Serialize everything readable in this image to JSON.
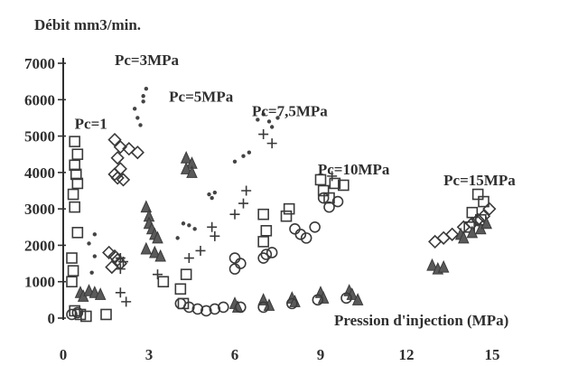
{
  "chart_data": {
    "type": "scatter",
    "title": "",
    "ylabel": "Débit mm3/min.",
    "xlabel": "Pression d'injection (MPa)",
    "xlim": [
      0,
      15
    ],
    "ylim": [
      0,
      7000
    ],
    "xticks": [
      "0",
      "3",
      "6",
      "9",
      "12",
      "15"
    ],
    "yticks": [
      "0",
      "1000",
      "2000",
      "3000",
      "4000",
      "5000",
      "6000",
      "7000"
    ],
    "grid": false,
    "annotations": [
      {
        "text": "Pc=1",
        "x": 0.4,
        "y": 5200
      },
      {
        "text": "Pc=3MPa",
        "x": 1.8,
        "y": 6950
      },
      {
        "text": "Pc=5MPa",
        "x": 3.7,
        "y": 5950
      },
      {
        "text": "Pc=7,5MPa",
        "x": 6.6,
        "y": 5550
      },
      {
        "text": "Pc=10MPa",
        "x": 8.9,
        "y": 3950
      },
      {
        "text": "Pc=15MPa",
        "x": 13.3,
        "y": 3650
      }
    ],
    "marker_types": [
      "square",
      "diamond",
      "triangle",
      "circle",
      "plus",
      "dot"
    ],
    "series": [
      {
        "marker": "square",
        "points": [
          [
            0.4,
            4850
          ],
          [
            0.5,
            4500
          ],
          [
            0.4,
            4200
          ],
          [
            0.45,
            3950
          ],
          [
            0.5,
            3700
          ],
          [
            0.35,
            3400
          ],
          [
            0.4,
            3050
          ],
          [
            0.5,
            2350
          ],
          [
            0.3,
            1650
          ],
          [
            0.35,
            1300
          ],
          [
            0.3,
            1000
          ],
          [
            0.4,
            200
          ],
          [
            0.6,
            100
          ],
          [
            0.8,
            50
          ],
          [
            1.5,
            100
          ],
          [
            3.5,
            1000
          ],
          [
            4.3,
            1200
          ],
          [
            4.1,
            800
          ],
          [
            4.2,
            400
          ],
          [
            7.0,
            2850
          ],
          [
            7.1,
            2400
          ],
          [
            7.0,
            2100
          ],
          [
            7.9,
            3000
          ],
          [
            7.8,
            2800
          ],
          [
            9.0,
            3800
          ],
          [
            9.1,
            3500
          ],
          [
            9.3,
            3300
          ],
          [
            9.5,
            3700
          ],
          [
            9.8,
            3650
          ],
          [
            14.5,
            3400
          ],
          [
            14.7,
            3200
          ],
          [
            14.3,
            2900
          ],
          [
            14.6,
            2700
          ],
          [
            14.2,
            2500
          ]
        ]
      },
      {
        "marker": "diamond",
        "points": [
          [
            1.8,
            4900
          ],
          [
            2.0,
            4700
          ],
          [
            2.3,
            4650
          ],
          [
            2.6,
            4550
          ],
          [
            1.9,
            4400
          ],
          [
            2.0,
            4100
          ],
          [
            1.8,
            3950
          ],
          [
            1.9,
            3850
          ],
          [
            2.1,
            3800
          ],
          [
            1.6,
            1800
          ],
          [
            1.8,
            1700
          ],
          [
            1.9,
            1600
          ],
          [
            2.0,
            1500
          ],
          [
            1.7,
            1400
          ],
          [
            13.0,
            2100
          ],
          [
            13.3,
            2200
          ],
          [
            13.6,
            2300
          ],
          [
            14.0,
            2500
          ],
          [
            14.3,
            2600
          ],
          [
            14.5,
            2700
          ],
          [
            14.7,
            2800
          ],
          [
            14.9,
            3000
          ]
        ]
      },
      {
        "marker": "triangle",
        "points": [
          [
            0.6,
            700
          ],
          [
            0.7,
            600
          ],
          [
            0.9,
            750
          ],
          [
            1.1,
            700
          ],
          [
            1.3,
            650
          ],
          [
            2.9,
            3050
          ],
          [
            3.0,
            2800
          ],
          [
            3.0,
            2600
          ],
          [
            3.1,
            2450
          ],
          [
            3.2,
            2300
          ],
          [
            3.3,
            2200
          ],
          [
            2.9,
            1900
          ],
          [
            3.2,
            1800
          ],
          [
            3.4,
            1700
          ],
          [
            4.3,
            4400
          ],
          [
            4.5,
            4250
          ],
          [
            4.3,
            4100
          ],
          [
            4.5,
            4000
          ],
          [
            6.0,
            400
          ],
          [
            6.1,
            300
          ],
          [
            7.0,
            500
          ],
          [
            7.2,
            350
          ],
          [
            8.0,
            550
          ],
          [
            8.1,
            450
          ],
          [
            9.0,
            700
          ],
          [
            9.1,
            550
          ],
          [
            10.0,
            750
          ],
          [
            10.1,
            650
          ],
          [
            10.3,
            500
          ],
          [
            12.9,
            1450
          ],
          [
            13.1,
            1350
          ],
          [
            13.3,
            1400
          ],
          [
            13.9,
            2300
          ],
          [
            14.0,
            2200
          ],
          [
            14.3,
            2350
          ],
          [
            14.6,
            2450
          ],
          [
            14.8,
            2600
          ]
        ]
      },
      {
        "marker": "circle",
        "points": [
          [
            0.3,
            100
          ],
          [
            0.5,
            150
          ],
          [
            4.1,
            400
          ],
          [
            4.4,
            300
          ],
          [
            4.7,
            250
          ],
          [
            5.0,
            200
          ],
          [
            5.3,
            250
          ],
          [
            5.6,
            300
          ],
          [
            6.0,
            1650
          ],
          [
            6.2,
            1500
          ],
          [
            6.0,
            1350
          ],
          [
            7.1,
            1750
          ],
          [
            7.3,
            1800
          ],
          [
            7.0,
            1650
          ],
          [
            8.1,
            2450
          ],
          [
            8.3,
            2300
          ],
          [
            8.5,
            2200
          ],
          [
            8.8,
            2500
          ],
          [
            9.1,
            3300
          ],
          [
            9.3,
            3050
          ],
          [
            9.6,
            3200
          ],
          [
            6.2,
            300
          ],
          [
            7.0,
            300
          ],
          [
            8.0,
            400
          ],
          [
            8.9,
            500
          ],
          [
            9.9,
            550
          ]
        ]
      },
      {
        "marker": "plus",
        "points": [
          [
            2.0,
            1650
          ],
          [
            2.1,
            1550
          ],
          [
            2.0,
            1350
          ],
          [
            2.0,
            700
          ],
          [
            2.2,
            450
          ],
          [
            3.3,
            1200
          ],
          [
            4.4,
            1650
          ],
          [
            4.8,
            1850
          ],
          [
            5.2,
            2500
          ],
          [
            5.3,
            2250
          ],
          [
            6.0,
            2850
          ],
          [
            6.3,
            3150
          ],
          [
            6.4,
            3500
          ],
          [
            7.0,
            5050
          ],
          [
            7.3,
            4800
          ],
          [
            9.4,
            3900
          ]
        ]
      },
      {
        "marker": "dot",
        "points": [
          [
            1.1,
            2300
          ],
          [
            0.9,
            2050
          ],
          [
            2.6,
            5500
          ],
          [
            2.7,
            5300
          ],
          [
            2.8,
            5950
          ],
          [
            2.9,
            6300
          ],
          [
            2.8,
            6100
          ],
          [
            2.5,
            5750
          ],
          [
            4.2,
            2600
          ],
          [
            4.4,
            2550
          ],
          [
            4.6,
            2450
          ],
          [
            4.0,
            2200
          ],
          [
            5.1,
            3400
          ],
          [
            5.2,
            3300
          ],
          [
            5.3,
            3450
          ],
          [
            6.0,
            4300
          ],
          [
            6.3,
            4450
          ],
          [
            6.5,
            4550
          ],
          [
            6.8,
            5450
          ],
          [
            7.0,
            5600
          ],
          [
            7.2,
            5400
          ],
          [
            7.3,
            5250
          ],
          [
            7.5,
            5500
          ],
          [
            1.1,
            1700
          ],
          [
            1.0,
            1250
          ]
        ]
      }
    ]
  }
}
